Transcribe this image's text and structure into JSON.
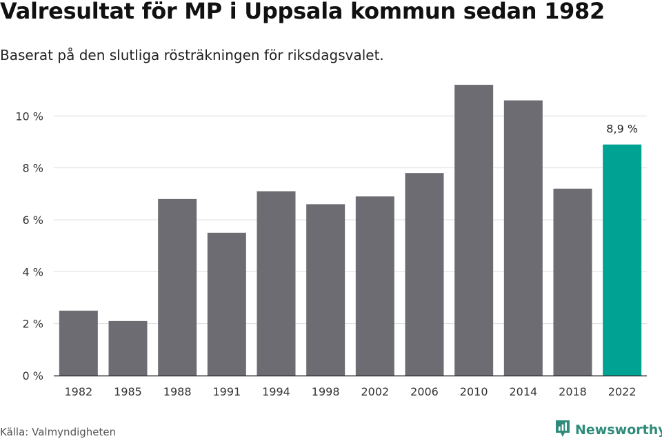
{
  "title": "Valresultat för MP i Uppsala kommun sedan 1982",
  "subtitle": "Baserat på den slutliga rösträkningen för riksdagsvalet.",
  "source": "Källa: Valmyndigheten",
  "brand": {
    "name": "Newsworthy",
    "icon": "newsworthy-logo-icon",
    "color": "#2e8b7a"
  },
  "colors": {
    "bar": "#6d6c72",
    "highlight": "#00a293",
    "grid": "#dddddd",
    "axis": "#333333"
  },
  "chart_data": {
    "type": "bar",
    "categories": [
      "1982",
      "1985",
      "1988",
      "1991",
      "1994",
      "1998",
      "2002",
      "2006",
      "2010",
      "2014",
      "2018",
      "2022"
    ],
    "values": [
      2.5,
      2.1,
      6.8,
      5.5,
      7.1,
      6.6,
      6.9,
      7.8,
      11.2,
      10.6,
      7.2,
      8.9
    ],
    "highlight_index": 11,
    "data_labels": [
      {
        "index": 11,
        "text": "8,9 %"
      }
    ],
    "yticks": [
      0,
      2,
      4,
      6,
      8,
      10
    ],
    "ytick_labels": [
      "0 %",
      "2 %",
      "4 %",
      "6 %",
      "8 %",
      "10 %"
    ],
    "ylim": [
      0,
      11.6
    ],
    "grid": true,
    "xlabel": "",
    "ylabel": ""
  }
}
